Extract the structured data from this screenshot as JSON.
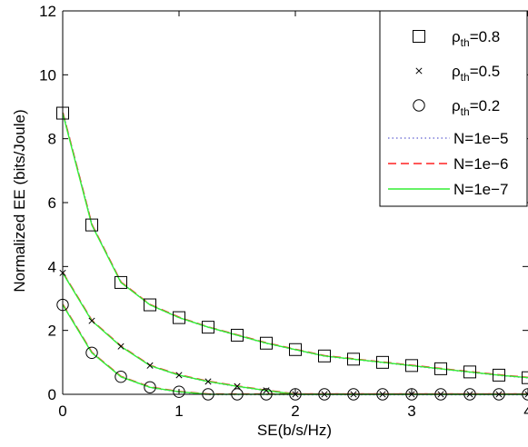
{
  "chart_data": {
    "type": "line",
    "title": "",
    "xlabel": "SE(b/s/Hz)",
    "ylabel": "Normalized EE (bits/Joule)",
    "xlim": [
      0,
      4
    ],
    "ylim": [
      0,
      12
    ],
    "xticks": [
      "0",
      "1",
      "2",
      "3",
      "4"
    ],
    "yticks": [
      "0",
      "2",
      "4",
      "6",
      "8",
      "10",
      "12"
    ],
    "grid": false,
    "legend_position": "top-right",
    "curves": [
      {
        "x": [
          0,
          0.25,
          0.5,
          0.75,
          1.0,
          1.25,
          1.5,
          1.75,
          2.0,
          2.25,
          2.5,
          2.75,
          3.0,
          3.25,
          3.5,
          3.75,
          4.0
        ],
        "y": [
          8.8,
          5.3,
          3.5,
          2.8,
          2.4,
          2.1,
          1.85,
          1.6,
          1.4,
          1.2,
          1.1,
          1.0,
          0.9,
          0.8,
          0.7,
          0.6,
          0.52
        ]
      },
      {
        "x": [
          0,
          0.25,
          0.5,
          0.75,
          1.0,
          1.25,
          1.5,
          1.75,
          2.0,
          2.25,
          2.5,
          2.75,
          3.0,
          3.25,
          3.5,
          3.75,
          4.0
        ],
        "y": [
          3.8,
          2.3,
          1.5,
          0.9,
          0.6,
          0.4,
          0.25,
          0.12,
          0,
          0,
          0,
          0,
          0,
          0,
          0,
          0,
          0
        ]
      },
      {
        "x": [
          0,
          0.25,
          0.5,
          0.75,
          1.0,
          1.25,
          1.5,
          1.75,
          2.0,
          2.25,
          2.5,
          2.75,
          3.0,
          3.25,
          3.5,
          3.75,
          4.0
        ],
        "y": [
          2.8,
          1.3,
          0.55,
          0.22,
          0.08,
          0,
          0,
          0,
          0,
          0,
          0,
          0,
          0,
          0,
          0,
          0,
          0
        ]
      }
    ],
    "series": [
      {
        "name": "N=1e−5",
        "style": "dotted",
        "color": "#7b7bd8"
      },
      {
        "name": "N=1e−6",
        "style": "dashed",
        "color": "#ff2020"
      },
      {
        "name": "N=1e−7",
        "style": "solid",
        "color": "#33ee33"
      }
    ],
    "markers": [
      {
        "label_base": "ρ",
        "label_sub": "th",
        "label_rest": "=0.8",
        "symbol": "square",
        "curve": 0
      },
      {
        "label_base": "ρ",
        "label_sub": "th",
        "label_rest": "=0.5",
        "symbol": "x",
        "curve": 1
      },
      {
        "label_base": "ρ",
        "label_sub": "th",
        "label_rest": "=0.2",
        "symbol": "circle",
        "curve": 2
      }
    ]
  }
}
